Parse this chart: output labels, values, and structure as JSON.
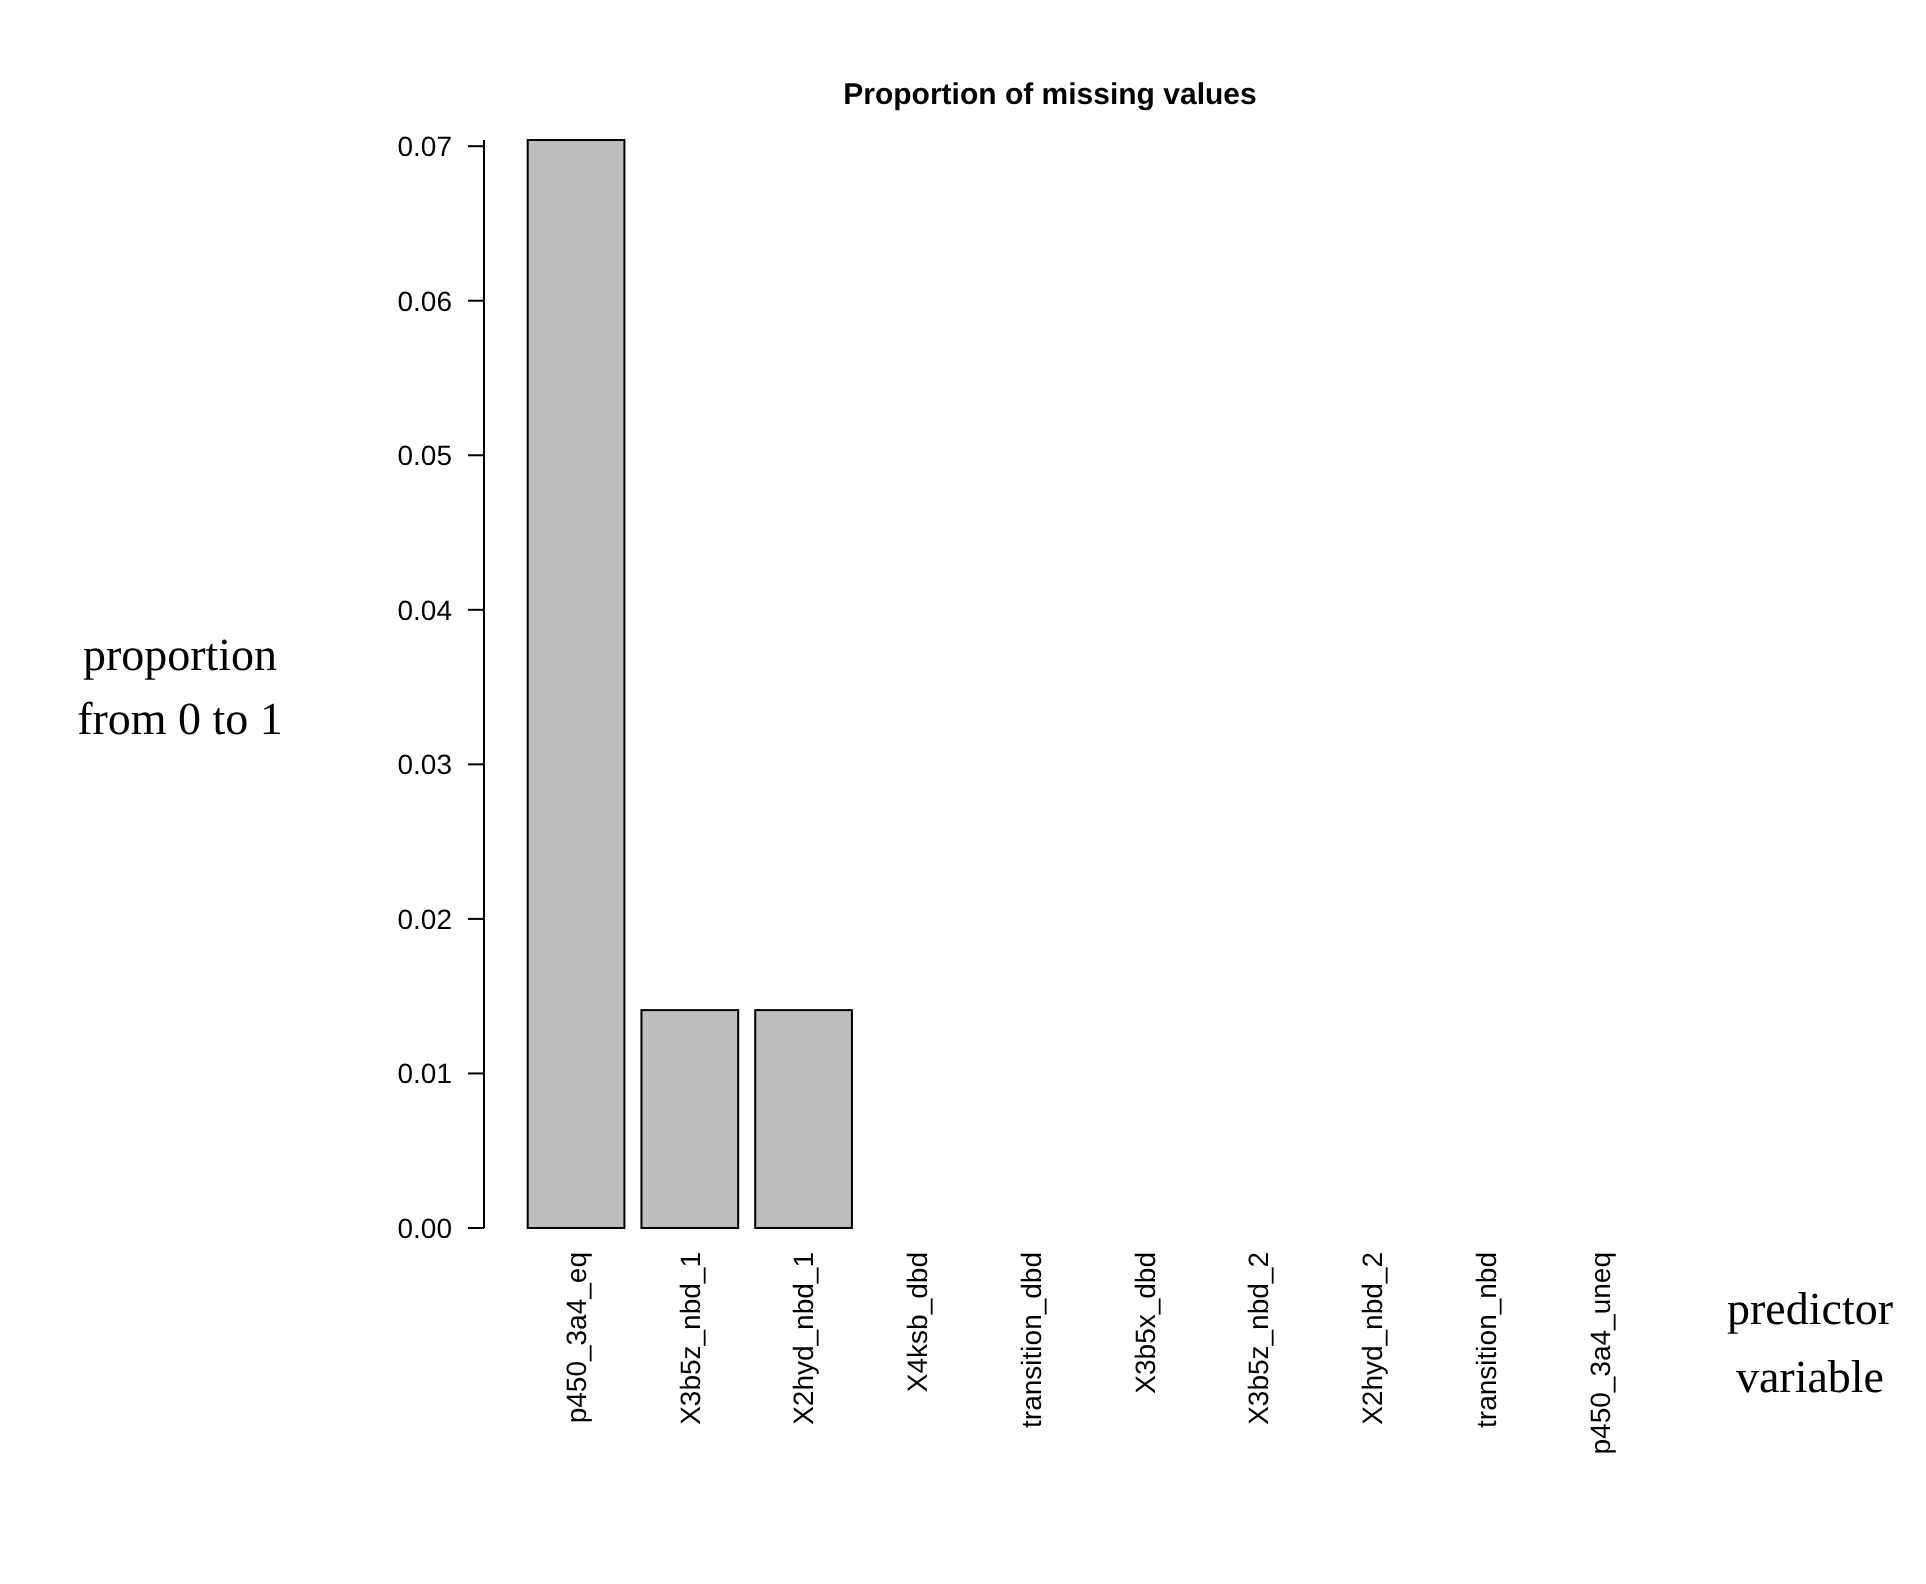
{
  "chart_data": {
    "type": "bar",
    "title": "Proportion of missing values",
    "xlabel": "predictor\nvariable",
    "ylabel": "proportion\nfrom 0 to 1",
    "categories": [
      "p450_3a4_eq",
      "X3b5z_nbd_1",
      "X2hyd_nbd_1",
      "X4ksb_dbd",
      "transition_dbd",
      "X3b5x_dbd",
      "X3b5z_nbd_2",
      "X2hyd_nbd_2",
      "transition_nbd",
      "p450_3a4_uneq"
    ],
    "values": [
      0.0704,
      0.0141,
      0.0141,
      0,
      0,
      0,
      0,
      0,
      0,
      0
    ],
    "color": "#bebebe",
    "ylim": [
      0,
      0.0704
    ],
    "yticks": [
      {
        "value": 0,
        "label": "0.00"
      },
      {
        "value": 0.01,
        "label": "0.01"
      },
      {
        "value": 0.02,
        "label": "0.02"
      },
      {
        "value": 0.03,
        "label": "0.03"
      },
      {
        "value": 0.04,
        "label": "0.04"
      },
      {
        "value": 0.05,
        "label": "0.05"
      },
      {
        "value": 0.06,
        "label": "0.06"
      },
      {
        "value": 0.07,
        "label": "0.07"
      }
    ],
    "grid": false
  }
}
